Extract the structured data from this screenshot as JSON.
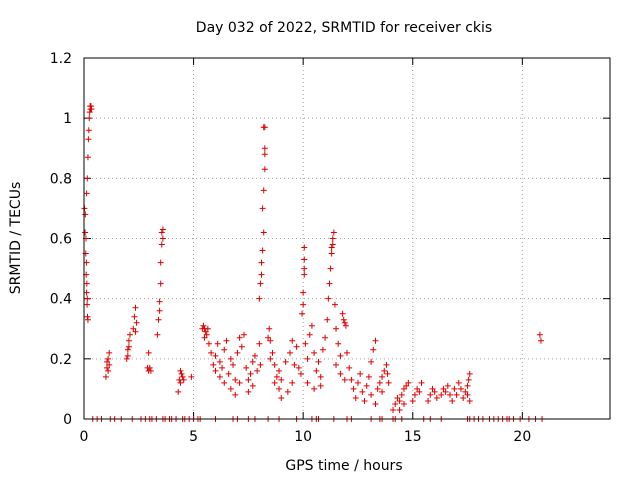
{
  "colors": {
    "series": "#e00000",
    "grid": "#a0a0a0",
    "axis": "#000000",
    "background": "#ffffff"
  },
  "chart_data": {
    "type": "scatter",
    "title": "Day 032 of 2022, SRMTID for receiver ckis",
    "xlabel": "GPS time / hours",
    "ylabel": "SRMTID / TECUs",
    "xlim": [
      0,
      24
    ],
    "ylim": [
      0,
      1.2
    ],
    "grid": true,
    "x_ticks": [
      0,
      5,
      10,
      15,
      20
    ],
    "x_tick_labels": [
      "0",
      "5",
      "10",
      "15",
      "20"
    ],
    "y_ticks": [
      0,
      0.2,
      0.4,
      0.6,
      0.8,
      1,
      1.2
    ],
    "y_tick_labels": [
      "0",
      "0.2",
      "0.4",
      "0.6",
      "0.8",
      "1",
      "1.2"
    ],
    "marker": "+",
    "series": [
      {
        "name": "SRMTID",
        "points": [
          [
            0.02,
            0.7
          ],
          [
            0.05,
            0.62
          ],
          [
            0.08,
            0.55
          ],
          [
            0.1,
            0.48
          ],
          [
            0.12,
            0.42
          ],
          [
            0.14,
            0.38
          ],
          [
            0.16,
            0.34
          ],
          [
            0.18,
            0.33
          ],
          [
            0.06,
            0.68
          ],
          [
            0.09,
            0.6
          ],
          [
            0.11,
            0.52
          ],
          [
            0.13,
            0.45
          ],
          [
            0.15,
            0.4
          ],
          [
            0.12,
            0.75
          ],
          [
            0.15,
            0.8
          ],
          [
            0.18,
            0.87
          ],
          [
            0.2,
            0.93
          ],
          [
            0.22,
            0.96
          ],
          [
            0.24,
            1.0
          ],
          [
            0.26,
            1.02
          ],
          [
            0.28,
            1.04
          ],
          [
            0.3,
            1.03
          ],
          [
            0.32,
            1.04
          ],
          [
            0.34,
            1.03
          ],
          [
            1.0,
            0.14
          ],
          [
            1.05,
            0.17
          ],
          [
            1.1,
            0.2
          ],
          [
            1.15,
            0.22
          ],
          [
            1.1,
            0.16
          ],
          [
            1.05,
            0.19
          ],
          [
            1.15,
            0.18
          ],
          [
            1.95,
            0.2
          ],
          [
            2.0,
            0.23
          ],
          [
            2.05,
            0.26
          ],
          [
            2.1,
            0.28
          ],
          [
            2.0,
            0.21
          ],
          [
            2.05,
            0.24
          ],
          [
            2.25,
            0.3
          ],
          [
            2.3,
            0.34
          ],
          [
            2.35,
            0.37
          ],
          [
            2.4,
            0.32
          ],
          [
            2.35,
            0.29
          ],
          [
            2.9,
            0.17
          ],
          [
            2.95,
            0.16
          ],
          [
            3.0,
            0.17
          ],
          [
            3.05,
            0.16
          ],
          [
            2.95,
            0.22
          ],
          [
            3.35,
            0.28
          ],
          [
            3.4,
            0.33
          ],
          [
            3.45,
            0.39
          ],
          [
            3.5,
            0.45
          ],
          [
            3.5,
            0.52
          ],
          [
            3.55,
            0.58
          ],
          [
            3.55,
            0.62
          ],
          [
            3.6,
            0.63
          ],
          [
            3.6,
            0.6
          ],
          [
            3.45,
            0.36
          ],
          [
            4.3,
            0.09
          ],
          [
            4.35,
            0.13
          ],
          [
            4.4,
            0.16
          ],
          [
            4.45,
            0.15
          ],
          [
            4.5,
            0.14
          ],
          [
            4.55,
            0.13
          ],
          [
            4.4,
            0.12
          ],
          [
            4.9,
            0.14
          ],
          [
            5.4,
            0.3
          ],
          [
            5.45,
            0.31
          ],
          [
            5.5,
            0.3
          ],
          [
            5.55,
            0.29
          ],
          [
            5.6,
            0.28
          ],
          [
            5.65,
            0.3
          ],
          [
            5.5,
            0.27
          ],
          [
            5.7,
            0.25
          ],
          [
            5.8,
            0.22
          ],
          [
            5.9,
            0.18
          ],
          [
            6.0,
            0.21
          ],
          [
            6.1,
            0.25
          ],
          [
            6.2,
            0.19
          ],
          [
            6.3,
            0.17
          ],
          [
            6.4,
            0.23
          ],
          [
            6.5,
            0.26
          ],
          [
            6.0,
            0.16
          ],
          [
            6.2,
            0.14
          ],
          [
            6.4,
            0.12
          ],
          [
            6.6,
            0.15
          ],
          [
            6.7,
            0.2
          ],
          [
            6.8,
            0.18
          ],
          [
            6.9,
            0.13
          ],
          [
            7.0,
            0.22
          ],
          [
            7.1,
            0.27
          ],
          [
            7.2,
            0.24
          ],
          [
            7.3,
            0.28
          ],
          [
            6.7,
            0.1
          ],
          [
            6.9,
            0.08
          ],
          [
            7.1,
            0.12
          ],
          [
            7.4,
            0.17
          ],
          [
            7.5,
            0.13
          ],
          [
            7.6,
            0.15
          ],
          [
            7.7,
            0.19
          ],
          [
            7.8,
            0.21
          ],
          [
            7.9,
            0.16
          ],
          [
            8.0,
            0.25
          ],
          [
            8.05,
            0.18
          ],
          [
            7.5,
            0.09
          ],
          [
            7.7,
            0.11
          ],
          [
            8.0,
            0.4
          ],
          [
            8.05,
            0.45
          ],
          [
            8.1,
            0.52
          ],
          [
            8.15,
            0.56
          ],
          [
            8.2,
            0.62
          ],
          [
            8.1,
            0.48
          ],
          [
            8.15,
            0.7
          ],
          [
            8.2,
            0.76
          ],
          [
            8.25,
            0.83
          ],
          [
            8.25,
            0.88
          ],
          [
            8.25,
            0.9
          ],
          [
            8.2,
            0.97
          ],
          [
            8.25,
            0.97
          ],
          [
            8.4,
            0.27
          ],
          [
            8.45,
            0.3
          ],
          [
            8.5,
            0.26
          ],
          [
            8.6,
            0.22
          ],
          [
            8.7,
            0.18
          ],
          [
            8.8,
            0.14
          ],
          [
            8.9,
            0.1
          ],
          [
            9.0,
            0.07
          ],
          [
            8.5,
            0.2
          ],
          [
            8.7,
            0.12
          ],
          [
            8.9,
            0.16
          ],
          [
            9.0,
            0.13
          ],
          [
            9.2,
            0.19
          ],
          [
            9.4,
            0.22
          ],
          [
            9.5,
            0.26
          ],
          [
            9.6,
            0.18
          ],
          [
            9.7,
            0.24
          ],
          [
            9.8,
            0.17
          ],
          [
            9.3,
            0.09
          ],
          [
            9.5,
            0.12
          ],
          [
            9.9,
            0.15
          ],
          [
            9.95,
            0.35
          ],
          [
            10.0,
            0.38
          ],
          [
            10.0,
            0.42
          ],
          [
            10.05,
            0.48
          ],
          [
            10.05,
            0.5
          ],
          [
            10.05,
            0.53
          ],
          [
            10.05,
            0.57
          ],
          [
            10.1,
            0.25
          ],
          [
            10.2,
            0.2
          ],
          [
            10.3,
            0.28
          ],
          [
            10.4,
            0.31
          ],
          [
            10.5,
            0.22
          ],
          [
            10.6,
            0.16
          ],
          [
            10.7,
            0.19
          ],
          [
            10.8,
            0.14
          ],
          [
            10.9,
            0.23
          ],
          [
            10.2,
            0.12
          ],
          [
            10.5,
            0.1
          ],
          [
            10.8,
            0.11
          ],
          [
            11.0,
            0.27
          ],
          [
            11.1,
            0.33
          ],
          [
            11.15,
            0.4
          ],
          [
            11.2,
            0.45
          ],
          [
            11.25,
            0.5
          ],
          [
            11.3,
            0.55
          ],
          [
            11.35,
            0.58
          ],
          [
            11.4,
            0.62
          ],
          [
            11.35,
            0.6
          ],
          [
            11.3,
            0.57
          ],
          [
            11.45,
            0.38
          ],
          [
            11.5,
            0.3
          ],
          [
            11.6,
            0.25
          ],
          [
            11.7,
            0.21
          ],
          [
            11.8,
            0.35
          ],
          [
            11.85,
            0.33
          ],
          [
            11.9,
            0.32
          ],
          [
            11.95,
            0.31
          ],
          [
            11.5,
            0.18
          ],
          [
            11.7,
            0.15
          ],
          [
            11.9,
            0.13
          ],
          [
            12.0,
            0.22
          ],
          [
            12.1,
            0.17
          ],
          [
            12.2,
            0.13
          ],
          [
            12.3,
            0.1
          ],
          [
            12.4,
            0.07
          ],
          [
            12.5,
            0.12
          ],
          [
            12.6,
            0.15
          ],
          [
            12.7,
            0.09
          ],
          [
            12.8,
            0.06
          ],
          [
            12.9,
            0.11
          ],
          [
            13.0,
            0.14
          ],
          [
            13.1,
            0.19
          ],
          [
            13.2,
            0.23
          ],
          [
            13.3,
            0.26
          ],
          [
            13.1,
            0.08
          ],
          [
            13.3,
            0.05
          ],
          [
            13.4,
            0.1
          ],
          [
            13.5,
            0.12
          ],
          [
            13.6,
            0.14
          ],
          [
            13.7,
            0.16
          ],
          [
            13.8,
            0.18
          ],
          [
            13.85,
            0.15
          ],
          [
            13.9,
            0.12
          ],
          [
            13.6,
            0.09
          ],
          [
            14.1,
            0.03
          ],
          [
            14.2,
            0.05
          ],
          [
            14.3,
            0.07
          ],
          [
            14.4,
            0.06
          ],
          [
            14.5,
            0.08
          ],
          [
            14.6,
            0.1
          ],
          [
            14.7,
            0.11
          ],
          [
            14.8,
            0.12
          ],
          [
            14.4,
            0.03
          ],
          [
            14.6,
            0.05
          ],
          [
            15.0,
            0.06
          ],
          [
            15.1,
            0.08
          ],
          [
            15.2,
            0.1
          ],
          [
            15.3,
            0.09
          ],
          [
            15.4,
            0.12
          ],
          [
            15.7,
            0.06
          ],
          [
            15.8,
            0.08
          ],
          [
            15.9,
            0.1
          ],
          [
            16.0,
            0.09
          ],
          [
            16.1,
            0.07
          ],
          [
            16.3,
            0.08
          ],
          [
            16.4,
            0.1
          ],
          [
            16.5,
            0.09
          ],
          [
            16.6,
            0.11
          ],
          [
            16.7,
            0.08
          ],
          [
            16.8,
            0.06
          ],
          [
            16.9,
            0.1
          ],
          [
            17.0,
            0.08
          ],
          [
            17.1,
            0.12
          ],
          [
            17.2,
            0.1
          ],
          [
            17.3,
            0.07
          ],
          [
            17.4,
            0.09
          ],
          [
            17.5,
            0.11
          ],
          [
            17.55,
            0.13
          ],
          [
            17.6,
            0.15
          ],
          [
            17.5,
            0.08
          ],
          [
            17.6,
            0.06
          ],
          [
            20.8,
            0.28
          ],
          [
            20.85,
            0.26
          ],
          [
            0.4,
            0.0
          ],
          [
            0.6,
            0.0
          ],
          [
            0.8,
            0.0
          ],
          [
            1.2,
            0.0
          ],
          [
            1.4,
            0.0
          ],
          [
            1.7,
            0.0
          ],
          [
            2.2,
            0.0
          ],
          [
            2.6,
            0.0
          ],
          [
            2.8,
            0.0
          ],
          [
            3.0,
            0.0
          ],
          [
            3.1,
            0.0
          ],
          [
            3.3,
            0.0
          ],
          [
            3.6,
            0.0
          ],
          [
            3.7,
            0.0
          ],
          [
            3.9,
            0.0
          ],
          [
            4.0,
            0.0
          ],
          [
            4.2,
            0.0
          ],
          [
            4.5,
            0.0
          ],
          [
            4.6,
            0.0
          ],
          [
            4.8,
            0.0
          ],
          [
            5.0,
            0.0
          ],
          [
            5.2,
            0.0
          ],
          [
            5.3,
            0.0
          ],
          [
            6.0,
            0.0
          ],
          [
            6.8,
            0.0
          ],
          [
            7.0,
            0.0
          ],
          [
            7.5,
            0.0
          ],
          [
            7.8,
            0.0
          ],
          [
            8.4,
            0.0
          ],
          [
            8.9,
            0.0
          ],
          [
            9.7,
            0.0
          ],
          [
            10.4,
            0.0
          ],
          [
            10.6,
            0.0
          ],
          [
            10.7,
            0.0
          ],
          [
            11.4,
            0.0
          ],
          [
            12.0,
            0.0
          ],
          [
            12.2,
            0.0
          ],
          [
            13.1,
            0.0
          ],
          [
            13.5,
            0.0
          ],
          [
            13.6,
            0.0
          ],
          [
            14.1,
            0.0
          ],
          [
            14.2,
            0.0
          ],
          [
            14.5,
            0.0
          ],
          [
            15.5,
            0.0
          ],
          [
            15.8,
            0.0
          ],
          [
            16.3,
            0.0
          ],
          [
            17.5,
            0.0
          ],
          [
            17.6,
            0.0
          ],
          [
            17.8,
            0.0
          ],
          [
            18.0,
            0.0
          ],
          [
            18.2,
            0.0
          ],
          [
            18.5,
            0.0
          ],
          [
            18.7,
            0.0
          ],
          [
            18.9,
            0.0
          ],
          [
            19.1,
            0.0
          ],
          [
            19.3,
            0.0
          ],
          [
            19.4,
            0.0
          ],
          [
            19.6,
            0.0
          ],
          [
            19.9,
            0.0
          ],
          [
            20.3,
            0.0
          ],
          [
            20.6,
            0.0
          ],
          [
            20.9,
            0.0
          ]
        ]
      }
    ]
  }
}
